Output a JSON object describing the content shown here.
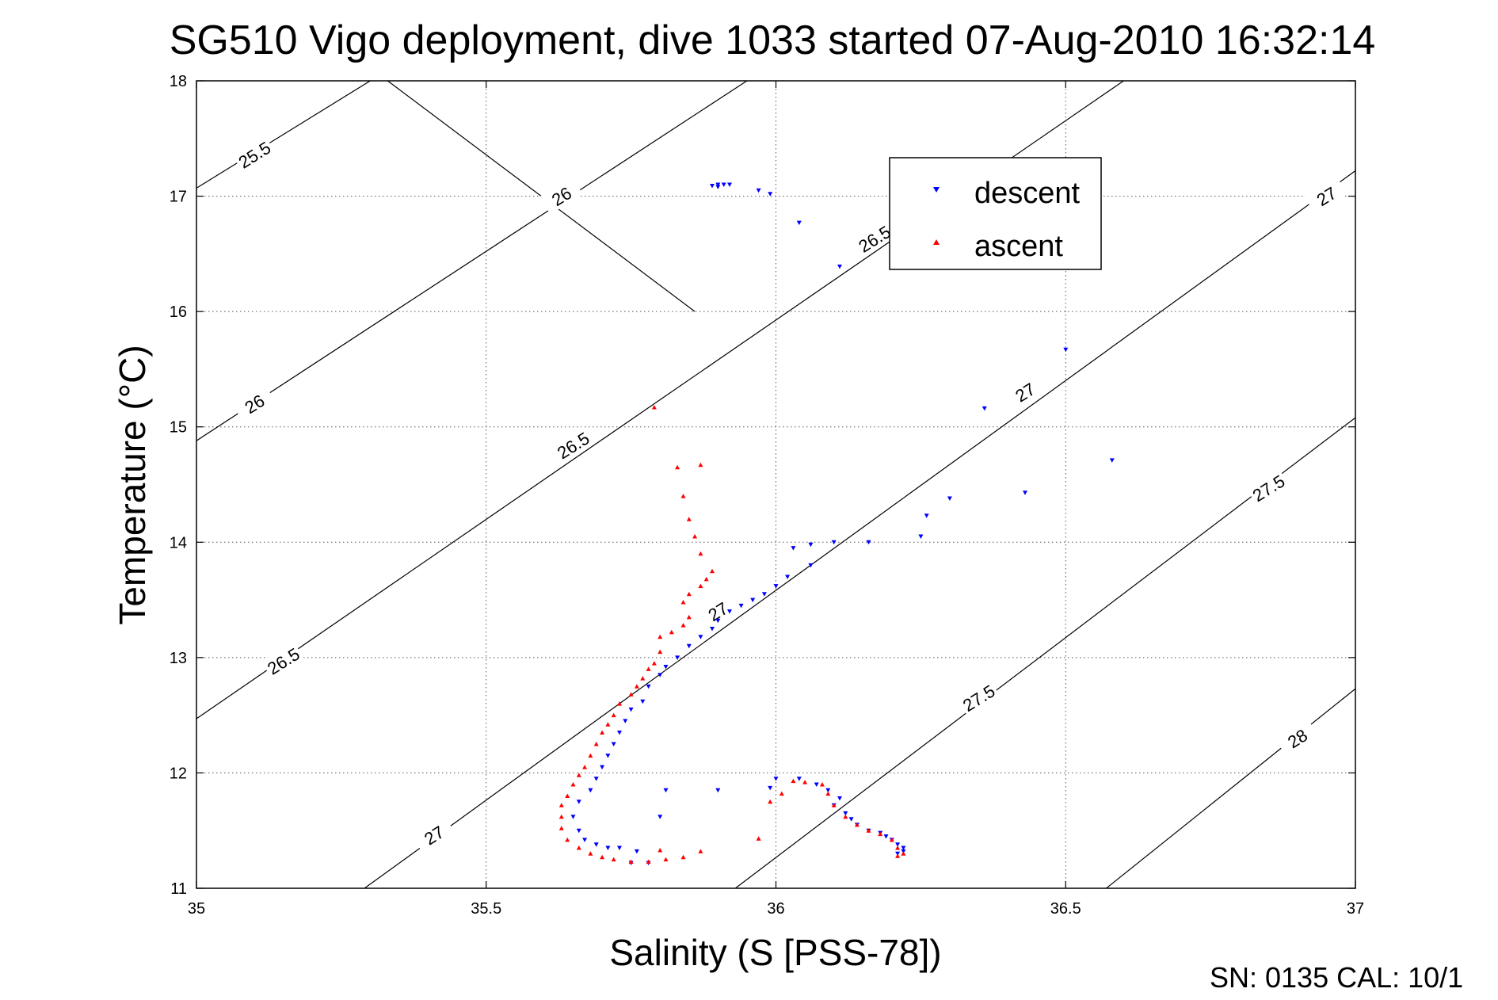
{
  "chart_data": {
    "type": "scatter",
    "title": "SG510 Vigo deployment, dive 1033 started 07-Aug-2010 16:32:14",
    "xlabel": "Salinity (S [PSS-78])",
    "ylabel": "Temperature (°C)",
    "xlim": [
      35,
      37
    ],
    "ylim": [
      11,
      18
    ],
    "xticks": [
      35,
      35.5,
      36,
      36.5,
      37
    ],
    "xtick_labels": [
      "35",
      "35.5",
      "36",
      "36.5",
      "37"
    ],
    "yticks": [
      11,
      12,
      13,
      14,
      15,
      16,
      17,
      18
    ],
    "ytick_labels": [
      "11",
      "12",
      "13",
      "14",
      "15",
      "16",
      "17",
      "18"
    ],
    "grid": true,
    "grid_style": "dotted",
    "legend_position": "top-right",
    "footer": "SN: 0135  CAL: 10/1",
    "density_contours": {
      "levels": [
        25.5,
        26,
        26.5,
        27,
        27.5,
        28
      ],
      "labels": [
        {
          "text": "25.5",
          "x": 35.1,
          "y": 17.36
        },
        {
          "text": "26",
          "x": 35.63,
          "y": 17.0
        },
        {
          "text": "26.5",
          "x": 36.17,
          "y": 16.63
        },
        {
          "text": "27",
          "x": 36.95,
          "y": 17.0
        },
        {
          "text": "26",
          "x": 35.1,
          "y": 15.2
        },
        {
          "text": "26.5",
          "x": 35.65,
          "y": 14.84
        },
        {
          "text": "27",
          "x": 36.43,
          "y": 15.3
        },
        {
          "text": "27.5",
          "x": 36.85,
          "y": 14.47
        },
        {
          "text": "26.5",
          "x": 35.15,
          "y": 12.97
        },
        {
          "text": "27",
          "x": 35.9,
          "y": 13.4
        },
        {
          "text": "27.5",
          "x": 36.35,
          "y": 12.65
        },
        {
          "text": "27",
          "x": 35.41,
          "y": 11.46
        },
        {
          "text": "28",
          "x": 36.9,
          "y": 12.3
        }
      ],
      "lines": [
        {
          "level": 25.5,
          "points": [
            [
              35,
              17.07
            ],
            [
              35.3,
              18
            ]
          ]
        },
        {
          "level": 26,
          "points": [
            [
              35,
              14.88
            ],
            [
              35.95,
              18
            ]
          ]
        },
        {
          "level": 26.5,
          "points": [
            [
              35,
              12.47
            ],
            [
              36.6,
              18
            ]
          ]
        },
        {
          "level": 26.5,
          "points": [
            [
              35.33,
              18
            ],
            [
              35.86,
              16.0
            ]
          ]
        },
        {
          "level": 27,
          "points": [
            [
              35.29,
              11
            ],
            [
              37,
              17.22
            ]
          ]
        },
        {
          "level": 27.5,
          "points": [
            [
              35.93,
              11
            ],
            [
              37,
              15.08
            ]
          ]
        },
        {
          "level": 28,
          "points": [
            [
              36.57,
              11
            ],
            [
              37,
              12.73
            ]
          ]
        }
      ]
    },
    "series": [
      {
        "name": "descent",
        "color": "#0000ff",
        "marker": "triangle-down",
        "points": [
          [
            35.89,
            17.09
          ],
          [
            35.9,
            17.1
          ],
          [
            35.9,
            17.08
          ],
          [
            35.91,
            17.1
          ],
          [
            35.92,
            17.1
          ],
          [
            35.97,
            17.05
          ],
          [
            35.99,
            17.02
          ],
          [
            36.04,
            16.77
          ],
          [
            36.11,
            16.39
          ],
          [
            36.5,
            15.67
          ],
          [
            36.36,
            15.16
          ],
          [
            36.58,
            14.71
          ],
          [
            36.43,
            14.43
          ],
          [
            36.3,
            14.38
          ],
          [
            36.26,
            14.23
          ],
          [
            36.25,
            14.05
          ],
          [
            36.16,
            14.0
          ],
          [
            36.1,
            14.0
          ],
          [
            36.06,
            13.98
          ],
          [
            36.03,
            13.95
          ],
          [
            36.06,
            13.8
          ],
          [
            36.02,
            13.7
          ],
          [
            36.0,
            13.62
          ],
          [
            35.98,
            13.55
          ],
          [
            35.96,
            13.5
          ],
          [
            35.94,
            13.45
          ],
          [
            35.92,
            13.4
          ],
          [
            35.9,
            13.32
          ],
          [
            35.89,
            13.25
          ],
          [
            35.87,
            13.18
          ],
          [
            35.85,
            13.1
          ],
          [
            35.83,
            13.0
          ],
          [
            35.81,
            12.92
          ],
          [
            35.8,
            12.85
          ],
          [
            35.78,
            12.75
          ],
          [
            35.77,
            12.62
          ],
          [
            35.75,
            12.55
          ],
          [
            35.74,
            12.45
          ],
          [
            35.73,
            12.35
          ],
          [
            35.72,
            12.25
          ],
          [
            35.71,
            12.15
          ],
          [
            35.7,
            12.05
          ],
          [
            35.69,
            11.95
          ],
          [
            35.68,
            11.85
          ],
          [
            35.66,
            11.75
          ],
          [
            35.65,
            11.62
          ],
          [
            35.66,
            11.5
          ],
          [
            35.67,
            11.42
          ],
          [
            35.69,
            11.38
          ],
          [
            35.71,
            11.35
          ],
          [
            35.73,
            11.35
          ],
          [
            35.76,
            11.32
          ],
          [
            35.75,
            11.22
          ],
          [
            35.78,
            11.22
          ],
          [
            35.8,
            11.62
          ],
          [
            35.81,
            11.85
          ],
          [
            35.9,
            11.85
          ],
          [
            35.99,
            11.87
          ],
          [
            36.0,
            11.95
          ],
          [
            36.04,
            11.95
          ],
          [
            36.07,
            11.9
          ],
          [
            36.09,
            11.85
          ],
          [
            36.11,
            11.78
          ],
          [
            36.1,
            11.72
          ],
          [
            36.12,
            11.65
          ],
          [
            36.13,
            11.6
          ],
          [
            36.14,
            11.55
          ],
          [
            36.16,
            11.5
          ],
          [
            36.18,
            11.48
          ],
          [
            36.19,
            11.45
          ],
          [
            36.2,
            11.42
          ],
          [
            36.21,
            11.38
          ],
          [
            36.22,
            11.35
          ],
          [
            36.22,
            11.32
          ],
          [
            36.21,
            11.3
          ]
        ]
      },
      {
        "name": "ascent",
        "color": "#ff0000",
        "marker": "triangle-up",
        "points": [
          [
            35.79,
            15.17
          ],
          [
            35.83,
            14.65
          ],
          [
            35.87,
            14.67
          ],
          [
            35.84,
            14.4
          ],
          [
            35.85,
            14.2
          ],
          [
            35.86,
            14.05
          ],
          [
            35.87,
            13.9
          ],
          [
            35.89,
            13.75
          ],
          [
            35.88,
            13.68
          ],
          [
            35.87,
            13.62
          ],
          [
            35.85,
            13.55
          ],
          [
            35.84,
            13.48
          ],
          [
            35.85,
            13.35
          ],
          [
            35.84,
            13.28
          ],
          [
            35.82,
            13.22
          ],
          [
            35.8,
            13.18
          ],
          [
            35.8,
            13.05
          ],
          [
            35.79,
            12.95
          ],
          [
            35.78,
            12.9
          ],
          [
            35.77,
            12.82
          ],
          [
            35.76,
            12.75
          ],
          [
            35.75,
            12.68
          ],
          [
            35.73,
            12.6
          ],
          [
            35.72,
            12.5
          ],
          [
            35.71,
            12.42
          ],
          [
            35.7,
            12.35
          ],
          [
            35.69,
            12.25
          ],
          [
            35.68,
            12.15
          ],
          [
            35.67,
            12.05
          ],
          [
            35.66,
            11.98
          ],
          [
            35.65,
            11.9
          ],
          [
            35.64,
            11.8
          ],
          [
            35.63,
            11.72
          ],
          [
            35.63,
            11.62
          ],
          [
            35.63,
            11.52
          ],
          [
            35.64,
            11.42
          ],
          [
            35.66,
            11.35
          ],
          [
            35.68,
            11.3
          ],
          [
            35.7,
            11.27
          ],
          [
            35.72,
            11.25
          ],
          [
            35.75,
            11.23
          ],
          [
            35.78,
            11.23
          ],
          [
            35.81,
            11.25
          ],
          [
            35.84,
            11.27
          ],
          [
            35.87,
            11.32
          ],
          [
            35.8,
            11.33
          ],
          [
            35.97,
            11.43
          ],
          [
            35.99,
            11.75
          ],
          [
            36.01,
            11.82
          ],
          [
            36.03,
            11.93
          ],
          [
            36.05,
            11.92
          ],
          [
            36.08,
            11.9
          ],
          [
            36.09,
            11.82
          ],
          [
            36.1,
            11.72
          ],
          [
            36.12,
            11.62
          ],
          [
            36.14,
            11.55
          ],
          [
            36.16,
            11.5
          ],
          [
            36.18,
            11.47
          ],
          [
            36.2,
            11.42
          ],
          [
            36.21,
            11.35
          ],
          [
            36.22,
            11.3
          ],
          [
            36.21,
            11.28
          ]
        ]
      }
    ]
  }
}
